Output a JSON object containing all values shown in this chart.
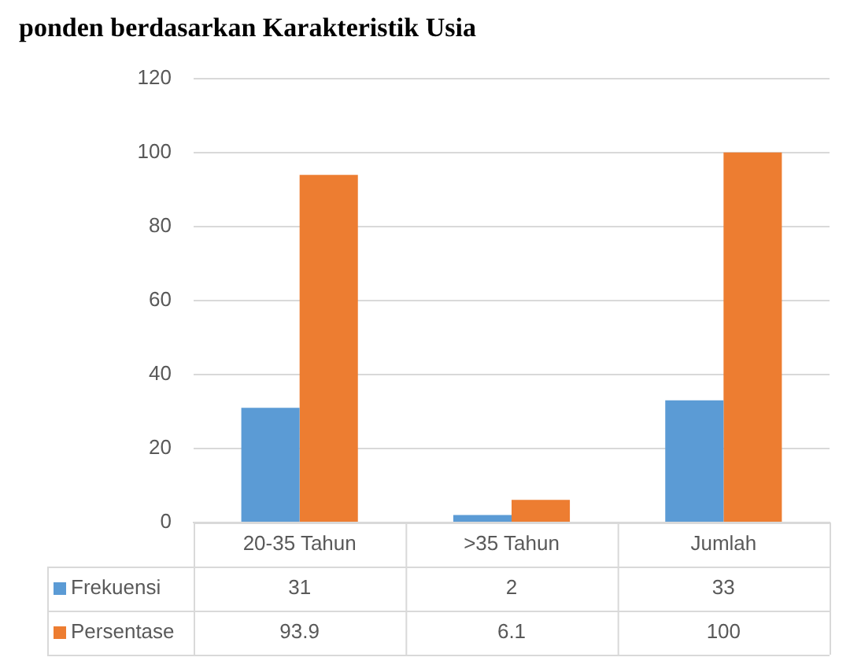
{
  "chart_data": {
    "type": "bar",
    "title": "ponden berdasarkan Karakteristik Usia",
    "categories": [
      "20-35 Tahun",
      ">35 Tahun",
      "Jumlah"
    ],
    "series": [
      {
        "name": "Frekuensi",
        "color": "#5b9bd5",
        "values": [
          31,
          2,
          33
        ]
      },
      {
        "name": "Persentase",
        "color": "#ed7d31",
        "values": [
          93.9,
          6.1,
          100
        ]
      }
    ],
    "ylim": [
      0,
      120
    ],
    "yticks": [
      0,
      20,
      40,
      60,
      80,
      100,
      120
    ],
    "grid": "y",
    "legend": "bottom",
    "data_labels": true
  }
}
